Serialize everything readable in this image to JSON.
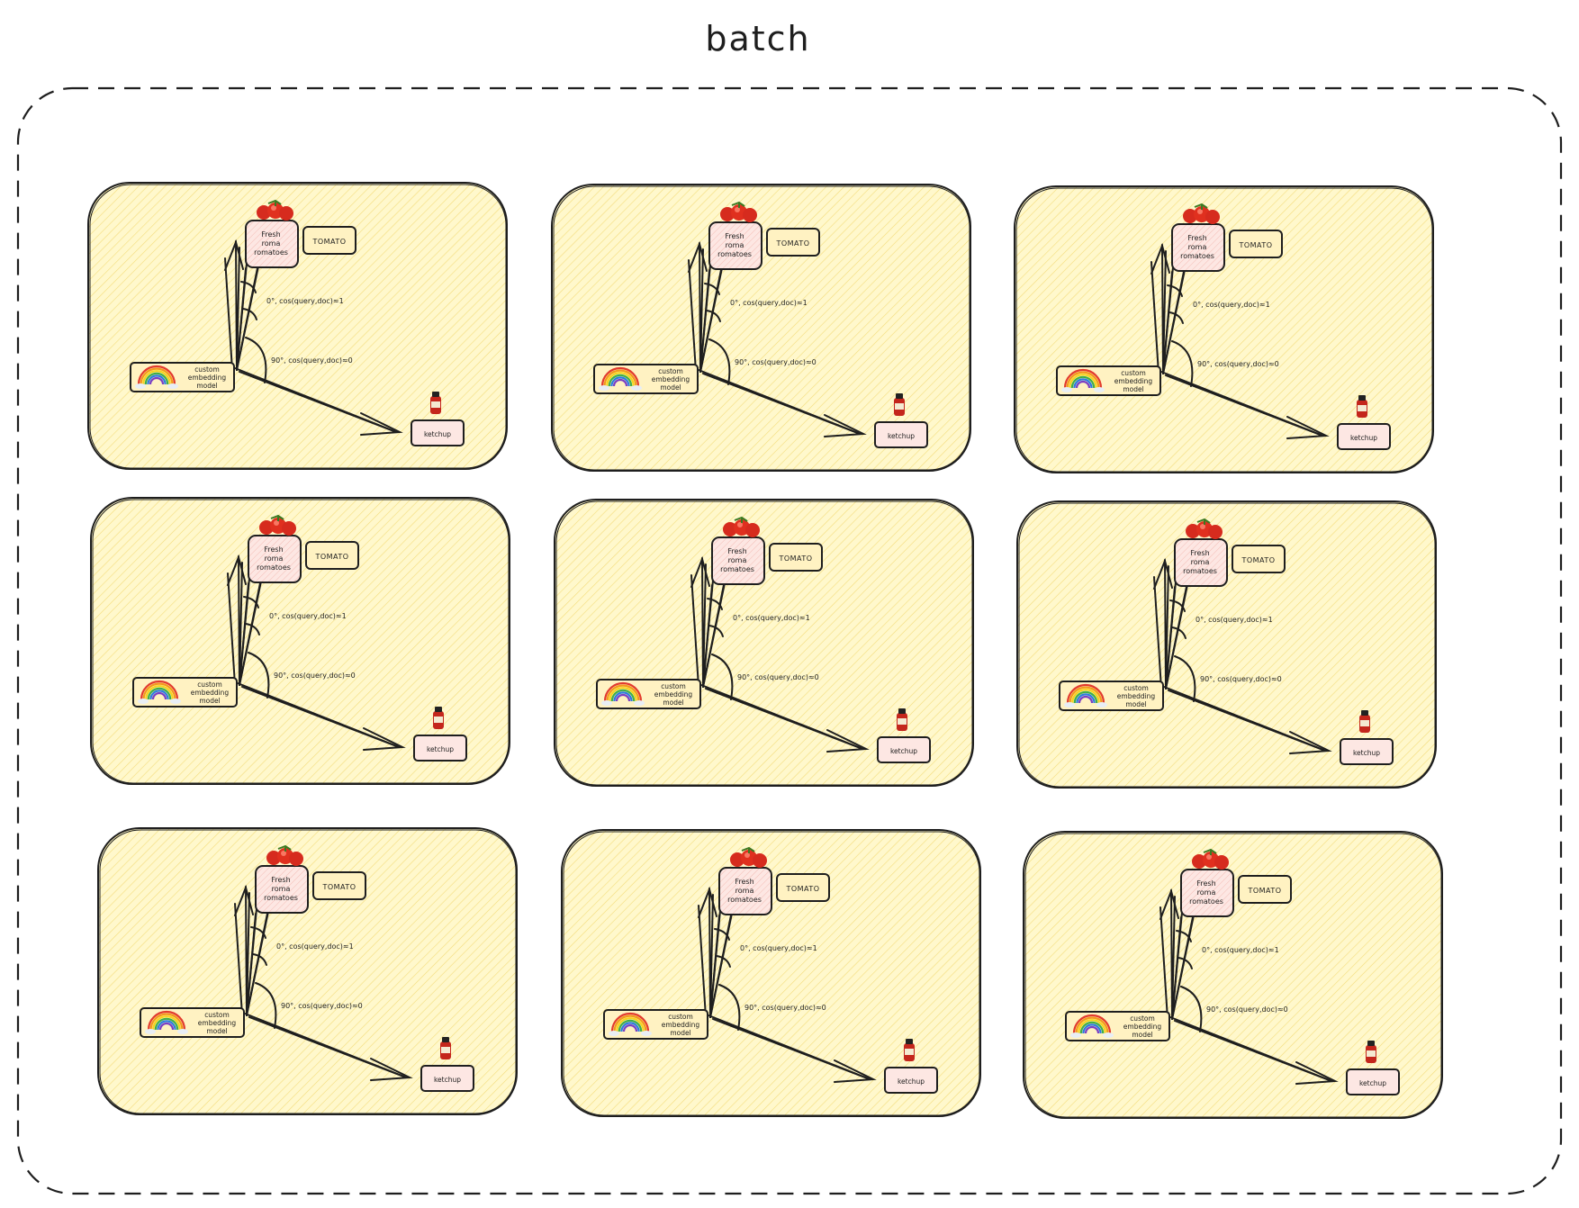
{
  "title": "batch",
  "panel_labels": {
    "document": [
      "Fresh",
      "roma",
      "romatoes"
    ],
    "tomato": "TOMATO",
    "model": [
      "custom",
      "embedding",
      "model"
    ],
    "ketchup": "ketchup",
    "angle_small": "0°, cos(query,doc)≈1",
    "angle_right": "90°, cos(query,doc)≈0"
  },
  "icons": {
    "top_item": "tomato-cluster-icon",
    "model": "rainbow-icon",
    "bottom_item": "ketchup-bottle-icon"
  },
  "colors": {
    "panel_fill": "#fff8cc",
    "hatch": "#f3dc7a",
    "stroke": "#1e1e1e",
    "tomato": "#d62b1e",
    "ketchup": "#c4261c"
  },
  "panel_count": 9
}
